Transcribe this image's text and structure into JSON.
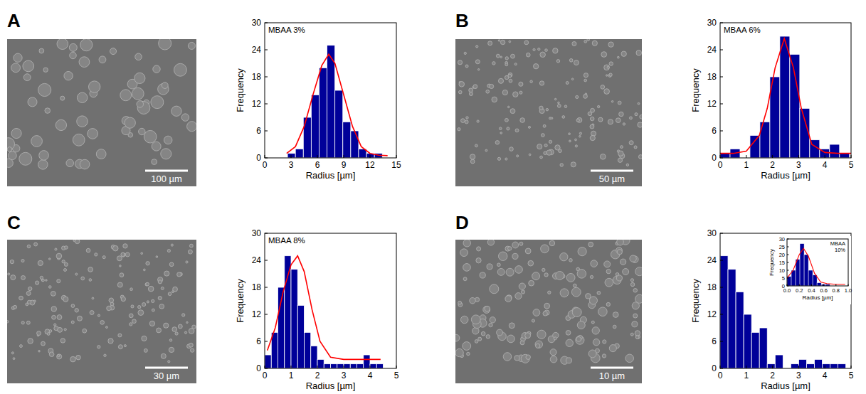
{
  "panels": [
    {
      "letter": "A",
      "scale_bar": "100 µm"
    },
    {
      "letter": "B",
      "scale_bar": "50 µm"
    },
    {
      "letter": "C",
      "scale_bar": "30 µm"
    },
    {
      "letter": "D",
      "scale_bar": "10 µm"
    }
  ],
  "chart_data": [
    {
      "type": "histogram",
      "annotation": "MBAA 3%",
      "xlabel": "Radius [µm]",
      "ylabel": "Frequency",
      "color": "#000099",
      "bins": [
        2.6,
        3.5,
        4.4,
        5.3,
        6.2,
        7.1,
        8.0,
        8.9,
        9.8,
        10.7,
        11.6,
        12.5,
        13.4
      ],
      "values": [
        1,
        2,
        9,
        14,
        20,
        25,
        15,
        8,
        6,
        2,
        1,
        1
      ],
      "xlim": [
        0,
        15
      ],
      "xticks": [
        0,
        3,
        6,
        9,
        12,
        15
      ],
      "ylim": [
        0,
        30
      ],
      "yticks": [
        0,
        6,
        12,
        18,
        24,
        30
      ],
      "series": [
        {
          "type": "line",
          "color": "#ff0000",
          "line_style": "solid",
          "x": [
            2.5,
            3.5,
            4.5,
            5.5,
            6.5,
            7.3,
            8,
            9,
            10,
            11,
            12,
            13,
            14
          ],
          "values": [
            1,
            2.5,
            7,
            14,
            20.5,
            23,
            21,
            14,
            7,
            2.5,
            1,
            0.6,
            0.5
          ]
        }
      ]
    },
    {
      "type": "histogram",
      "annotation": "MBAA 6%",
      "xlabel": "Radius [µm]",
      "ylabel": "Frequency",
      "color": "#000099",
      "bins": [
        0,
        0.38,
        0.76,
        1.14,
        1.52,
        1.9,
        2.28,
        2.66,
        3.04,
        3.42,
        3.8,
        4.18,
        4.56,
        4.94
      ],
      "values": [
        1,
        2,
        0,
        5,
        8,
        18,
        27,
        23,
        11,
        4,
        2,
        3,
        1
      ],
      "xlim": [
        0,
        5
      ],
      "xticks": [
        0,
        1,
        2,
        3,
        4,
        5
      ],
      "ylim": [
        0,
        30
      ],
      "yticks": [
        0,
        6,
        12,
        18,
        24,
        30
      ],
      "series": [
        {
          "type": "line",
          "color": "#ff0000",
          "line_style": "solid",
          "x": [
            0,
            0.5,
            1,
            1.5,
            1.8,
            2.1,
            2.45,
            2.8,
            3.1,
            3.5,
            4,
            4.5,
            5
          ],
          "values": [
            1,
            1,
            1.5,
            5,
            11,
            20,
            26.5,
            20,
            11,
            3,
            1.2,
            1,
            1
          ]
        }
      ]
    },
    {
      "type": "histogram",
      "annotation": "MBAA 8%",
      "xlabel": "Radius [µm]",
      "ylabel": "Frequency",
      "color": "#000099",
      "bins": [
        0,
        0.25,
        0.5,
        0.75,
        1,
        1.25,
        1.5,
        1.75,
        2,
        2.25,
        2.5,
        2.75,
        3,
        3.25,
        3.5,
        3.75,
        4,
        4.25,
        4.5
      ],
      "values": [
        3,
        8,
        18,
        25,
        22,
        14,
        8,
        5,
        2,
        1,
        1,
        1,
        1,
        1,
        1,
        3,
        1,
        1
      ],
      "xlim": [
        0,
        5
      ],
      "xticks": [
        0,
        1,
        2,
        3,
        4,
        5
      ],
      "ylim": [
        0,
        30
      ],
      "yticks": [
        0,
        6,
        12,
        18,
        24,
        30
      ],
      "series": [
        {
          "type": "line",
          "color": "#ff0000",
          "line_style": "solid",
          "x": [
            0.1,
            0.4,
            0.7,
            1,
            1.25,
            1.5,
            1.8,
            2.1,
            2.5,
            3,
            4,
            4.4
          ],
          "values": [
            4,
            9,
            17,
            23,
            25,
            21.5,
            13,
            6,
            2.5,
            2,
            2,
            2
          ]
        }
      ]
    },
    {
      "type": "histogram",
      "xlabel": "Radius [µm]",
      "ylabel": "Frequency",
      "color": "#000099",
      "bins": [
        0,
        0.3,
        0.6,
        0.9,
        1.2,
        1.5,
        1.8,
        2.1,
        2.4,
        2.7,
        3,
        3.3,
        3.6,
        3.9,
        4.2,
        4.5,
        4.8
      ],
      "values": [
        25,
        22,
        17,
        12,
        8,
        9,
        1,
        3,
        0,
        1,
        2,
        1,
        2,
        1,
        1,
        1
      ],
      "xlim": [
        0,
        5
      ],
      "xticks": [
        0,
        1,
        2,
        3,
        4,
        5
      ],
      "ylim": [
        0,
        30
      ],
      "yticks": [
        0,
        6,
        12,
        18,
        24,
        30
      ]
    },
    {
      "type": "histogram",
      "annotation": "MBAA 10%",
      "xlabel": "Radius [µm]",
      "ylabel": "Frequency",
      "color": "#000099",
      "bins": [
        0,
        0.07,
        0.14,
        0.21,
        0.28,
        0.35,
        0.42,
        0.49,
        0.56,
        0.63,
        0.7
      ],
      "values": [
        6,
        10,
        17,
        27,
        20,
        10,
        7,
        2,
        1,
        1
      ],
      "xlim": [
        0,
        1
      ],
      "xticks": [
        {
          "value": 0,
          "label": "0.0"
        },
        0.2,
        0.4,
        0.6,
        0.8,
        {
          "value": 1,
          "label": "1.0"
        }
      ],
      "ylim": [
        0,
        30
      ],
      "yticks": [
        0,
        5,
        10,
        15,
        20,
        25,
        30
      ],
      "series": [
        {
          "type": "line",
          "color": "#ff0000",
          "line_style": "solid",
          "x": [
            0,
            0.1,
            0.2,
            0.27,
            0.35,
            0.45,
            0.55,
            0.65,
            0.8,
            0.95
          ],
          "values": [
            5,
            10,
            20,
            24,
            19,
            8,
            2.5,
            1.5,
            1,
            1
          ]
        }
      ]
    }
  ]
}
